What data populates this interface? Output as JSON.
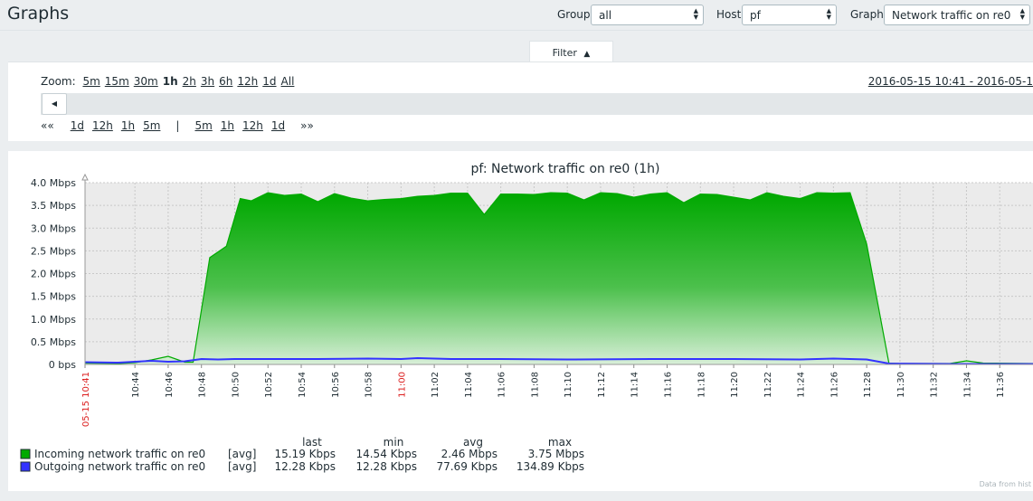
{
  "header": {
    "title": "Graphs",
    "group_label": "Group",
    "group_value": "all",
    "host_label": "Host",
    "host_value": "pf",
    "graph_label": "Graph",
    "graph_value": "Network traffic on re0"
  },
  "filter": {
    "tab_label": "Filter",
    "tab_arrow": "▲",
    "zoom_label": "Zoom:",
    "zoom_options": [
      "5m",
      "15m",
      "30m",
      "1h",
      "2h",
      "3h",
      "6h",
      "12h",
      "1d",
      "All"
    ],
    "zoom_selected": "1h",
    "period": "2016-05-15 10:41 - 2016-05-1",
    "scroll_left_icon": "◀",
    "nav_back_icon": "««",
    "nav_back": [
      "1d",
      "12h",
      "1h",
      "5m"
    ],
    "nav_separator": "|",
    "nav_forward": [
      "5m",
      "1h",
      "12h",
      "1d"
    ],
    "nav_forward_icon": "»»"
  },
  "chart_data": {
    "type": "area",
    "title": "pf: Network traffic on re0 (1h)",
    "xlabel": "",
    "ylabel": "",
    "y_unit": "Mbps",
    "y_ticks": [
      "0 bps",
      "0.5 Mbps",
      "1.0 Mbps",
      "1.5 Mbps",
      "2.0 Mbps",
      "2.5 Mbps",
      "3.0 Mbps",
      "3.5 Mbps",
      "4.0 Mbps"
    ],
    "ylim": [
      0,
      4.0
    ],
    "xlim": [
      "10:41",
      "11:38"
    ],
    "x_ticks": [
      {
        "t": "10:41",
        "label": "05-15 10:41",
        "highlight": true
      },
      {
        "t": "10:44",
        "label": "10:44"
      },
      {
        "t": "10:46",
        "label": "10:46"
      },
      {
        "t": "10:48",
        "label": "10:48"
      },
      {
        "t": "10:50",
        "label": "10:50"
      },
      {
        "t": "10:52",
        "label": "10:52"
      },
      {
        "t": "10:54",
        "label": "10:54"
      },
      {
        "t": "10:56",
        "label": "10:56"
      },
      {
        "t": "10:58",
        "label": "10:58"
      },
      {
        "t": "11:00",
        "label": "11:00",
        "highlight": true
      },
      {
        "t": "11:02",
        "label": "11:02"
      },
      {
        "t": "11:04",
        "label": "11:04"
      },
      {
        "t": "11:06",
        "label": "11:06"
      },
      {
        "t": "11:08",
        "label": "11:08"
      },
      {
        "t": "11:10",
        "label": "11:10"
      },
      {
        "t": "11:12",
        "label": "11:12"
      },
      {
        "t": "11:14",
        "label": "11:14"
      },
      {
        "t": "11:16",
        "label": "11:16"
      },
      {
        "t": "11:18",
        "label": "11:18"
      },
      {
        "t": "11:20",
        "label": "11:20"
      },
      {
        "t": "11:22",
        "label": "11:22"
      },
      {
        "t": "11:24",
        "label": "11:24"
      },
      {
        "t": "11:26",
        "label": "11:26"
      },
      {
        "t": "11:28",
        "label": "11:28"
      },
      {
        "t": "11:30",
        "label": "11:30"
      },
      {
        "t": "11:32",
        "label": "11:32"
      },
      {
        "t": "11:34",
        "label": "11:34"
      },
      {
        "t": "11:36",
        "label": "11:36"
      }
    ],
    "grid": true,
    "series": [
      {
        "name": "Incoming network traffic on re0",
        "color": "#00aa00",
        "points": [
          [
            "10:41",
            0.03
          ],
          [
            "10:43",
            0.02
          ],
          [
            "10:44",
            0.04
          ],
          [
            "10:45",
            0.1
          ],
          [
            "10:46",
            0.18
          ],
          [
            "10:47",
            0.05
          ],
          [
            "10:47:30",
            0.05
          ],
          [
            "10:48:30",
            2.35
          ],
          [
            "10:49:30",
            2.6
          ],
          [
            "10:50:20",
            3.65
          ],
          [
            "10:51",
            3.6
          ],
          [
            "10:52",
            3.78
          ],
          [
            "10:53",
            3.72
          ],
          [
            "10:54",
            3.75
          ],
          [
            "10:55",
            3.58
          ],
          [
            "10:56",
            3.76
          ],
          [
            "10:57",
            3.66
          ],
          [
            "10:58",
            3.6
          ],
          [
            "10:59",
            3.63
          ],
          [
            "11:00",
            3.65
          ],
          [
            "11:01",
            3.7
          ],
          [
            "11:02",
            3.72
          ],
          [
            "11:03",
            3.77
          ],
          [
            "11:04",
            3.77
          ],
          [
            "11:05",
            3.3
          ],
          [
            "11:06",
            3.75
          ],
          [
            "11:07",
            3.75
          ],
          [
            "11:08",
            3.74
          ],
          [
            "11:09",
            3.78
          ],
          [
            "11:10",
            3.77
          ],
          [
            "11:11",
            3.62
          ],
          [
            "11:12",
            3.78
          ],
          [
            "11:13",
            3.76
          ],
          [
            "11:14",
            3.68
          ],
          [
            "11:15",
            3.75
          ],
          [
            "11:16",
            3.78
          ],
          [
            "11:17",
            3.56
          ],
          [
            "11:18",
            3.75
          ],
          [
            "11:19",
            3.74
          ],
          [
            "11:20",
            3.68
          ],
          [
            "11:21",
            3.62
          ],
          [
            "11:22",
            3.78
          ],
          [
            "11:23",
            3.7
          ],
          [
            "11:24",
            3.65
          ],
          [
            "11:25",
            3.78
          ],
          [
            "11:26",
            3.77
          ],
          [
            "11:27",
            3.78
          ],
          [
            "11:28",
            2.65
          ],
          [
            "11:29:20",
            0.03
          ],
          [
            "11:30",
            0.02
          ],
          [
            "11:32",
            0.02
          ],
          [
            "11:33",
            0.02
          ],
          [
            "11:34",
            0.08
          ],
          [
            "11:35",
            0.03
          ],
          [
            "11:38",
            0.02
          ]
        ],
        "legend_func": "[avg]",
        "last": "15.19 Kbps",
        "min": "14.54 Kbps",
        "avg": "2.46 Mbps",
        "max": "3.75 Mbps"
      },
      {
        "name": "Outgoing network traffic on re0",
        "color": "#3333ff",
        "points": [
          [
            "10:41",
            0.05
          ],
          [
            "10:43",
            0.04
          ],
          [
            "10:45",
            0.08
          ],
          [
            "10:46",
            0.06
          ],
          [
            "10:47",
            0.07
          ],
          [
            "10:48",
            0.12
          ],
          [
            "10:49",
            0.11
          ],
          [
            "10:50",
            0.12
          ],
          [
            "10:55",
            0.12
          ],
          [
            "10:58",
            0.13
          ],
          [
            "11:00",
            0.12
          ],
          [
            "11:01",
            0.14
          ],
          [
            "11:03",
            0.12
          ],
          [
            "11:06",
            0.12
          ],
          [
            "11:10",
            0.11
          ],
          [
            "11:15",
            0.12
          ],
          [
            "11:20",
            0.12
          ],
          [
            "11:24",
            0.11
          ],
          [
            "11:26",
            0.13
          ],
          [
            "11:28",
            0.11
          ],
          [
            "11:29:20",
            0.02
          ],
          [
            "11:33",
            0.01
          ],
          [
            "11:38",
            0.01
          ]
        ],
        "legend_func": "[avg]",
        "last": "12.28 Kbps",
        "min": "12.28 Kbps",
        "avg": "77.69 Kbps",
        "max": "134.89 Kbps"
      }
    ],
    "legend_headers": [
      "last",
      "min",
      "avg",
      "max"
    ],
    "footer_note": "Data from hist"
  }
}
